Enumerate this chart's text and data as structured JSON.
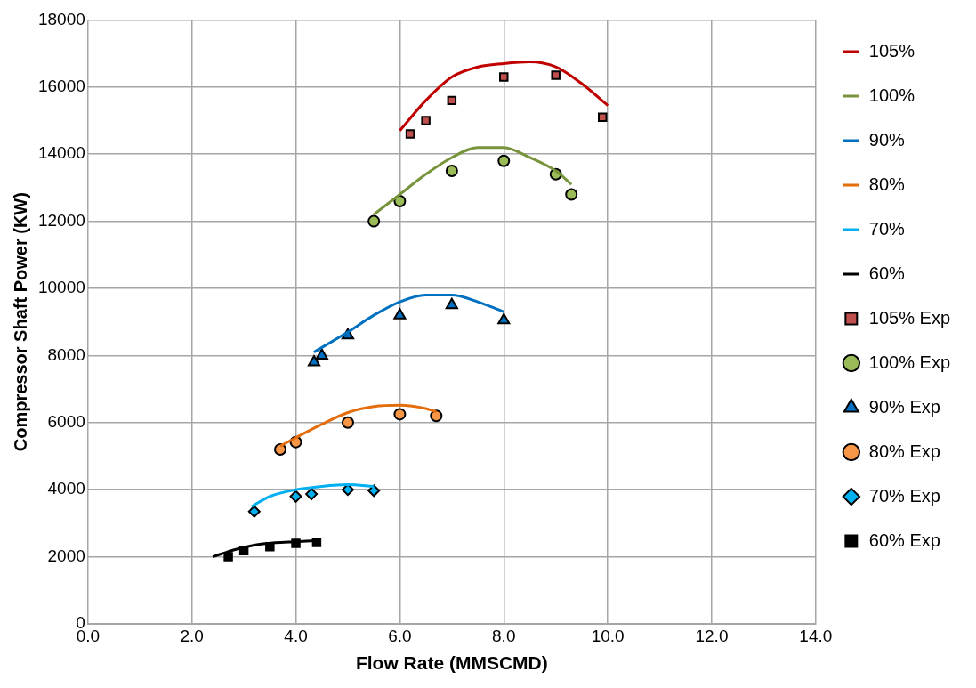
{
  "chart_data": {
    "type": "line",
    "xlabel": "Flow Rate (MMSCMD)",
    "ylabel": "Compressor Shaft Power (KW)",
    "xlim": [
      0,
      14
    ],
    "xticks": [
      {
        "value": 0,
        "label": "0.0"
      },
      {
        "value": 2,
        "label": "2.0"
      },
      {
        "value": 4,
        "label": "4.0"
      },
      {
        "value": 6,
        "label": "6.0"
      },
      {
        "value": 8,
        "label": "8.0"
      },
      {
        "value": 10,
        "label": "10.0"
      },
      {
        "value": 12,
        "label": "12.0"
      },
      {
        "value": 14,
        "label": "14.0"
      }
    ],
    "ylim": [
      0,
      18000
    ],
    "yticks": [
      0,
      2000,
      4000,
      6000,
      8000,
      10000,
      12000,
      14000,
      16000,
      18000
    ],
    "grid": true,
    "legend": "right",
    "series": [
      {
        "name": "105%",
        "marker": "none",
        "color": "#c00000",
        "x": [
          6.0,
          6.5,
          7.0,
          7.5,
          8.0,
          8.5,
          9.0,
          9.5,
          10.0
        ],
        "values": [
          14700,
          15600,
          16300,
          16600,
          16700,
          16750,
          16600,
          16100,
          15450
        ]
      },
      {
        "name": "100%",
        "marker": "none",
        "color": "#77933c",
        "x": [
          5.5,
          6.0,
          6.5,
          7.0,
          7.5,
          8.0,
          8.5,
          9.0,
          9.3
        ],
        "values": [
          12200,
          12800,
          13400,
          13900,
          14200,
          14200,
          13900,
          13500,
          13100
        ]
      },
      {
        "name": "90%",
        "marker": "none",
        "color": "#0070c0",
        "x": [
          4.35,
          5.0,
          5.5,
          6.0,
          6.5,
          7.0,
          7.5,
          8.0
        ],
        "values": [
          8100,
          8700,
          9200,
          9600,
          9800,
          9800,
          9600,
          9300
        ]
      },
      {
        "name": "80%",
        "marker": "none",
        "color": "#e46c0a",
        "x": [
          3.7,
          4.0,
          4.5,
          5.0,
          5.5,
          6.0,
          6.5,
          6.7
        ],
        "values": [
          5300,
          5550,
          5950,
          6300,
          6480,
          6520,
          6420,
          6320
        ]
      },
      {
        "name": "70%",
        "marker": "none",
        "color": "#00b0f0",
        "x": [
          3.15,
          3.5,
          4.0,
          4.5,
          5.0,
          5.5
        ],
        "values": [
          3500,
          3800,
          4000,
          4100,
          4150,
          4100
        ]
      },
      {
        "name": "60%",
        "marker": "none",
        "color": "#000000",
        "x": [
          2.4,
          2.8,
          3.2,
          3.6,
          4.0,
          4.4
        ],
        "values": [
          2000,
          2200,
          2350,
          2420,
          2450,
          2480
        ]
      },
      {
        "name": "105% Exp",
        "type": "scatter",
        "marker": "square",
        "color": "#c0504d",
        "x": [
          6.2,
          6.5,
          7.0,
          8.0,
          9.0,
          9.9
        ],
        "values": [
          14600,
          15000,
          15600,
          16300,
          16350,
          15100
        ]
      },
      {
        "name": "100% Exp",
        "type": "scatter",
        "marker": "circle",
        "color": "#9bbb59",
        "x": [
          5.5,
          6.0,
          7.0,
          8.0,
          9.0,
          9.3
        ],
        "values": [
          12000,
          12600,
          13500,
          13800,
          13400,
          12800
        ]
      },
      {
        "name": "90% Exp",
        "type": "scatter",
        "marker": "triangle",
        "color": "#0070c0",
        "x": [
          4.35,
          4.5,
          5.0,
          6.0,
          7.0,
          8.0
        ],
        "values": [
          7800,
          8000,
          8600,
          9200,
          9500,
          9050
        ]
      },
      {
        "name": "80% Exp",
        "type": "scatter",
        "marker": "circle",
        "color": "#f79646",
        "x": [
          3.7,
          4.0,
          5.0,
          6.0,
          6.7
        ],
        "values": [
          5200,
          5420,
          6000,
          6250,
          6200
        ]
      },
      {
        "name": "70% Exp",
        "type": "scatter",
        "marker": "diamond",
        "color": "#00b0f0",
        "x": [
          3.2,
          4.0,
          4.3,
          5.0,
          5.5
        ],
        "values": [
          3350,
          3800,
          3870,
          4000,
          3970
        ]
      },
      {
        "name": "60% Exp",
        "type": "scatter",
        "marker": "square",
        "color": "#000000",
        "x": [
          2.7,
          3.0,
          3.5,
          4.0,
          4.4
        ],
        "values": [
          2000,
          2180,
          2300,
          2400,
          2430
        ]
      }
    ]
  }
}
